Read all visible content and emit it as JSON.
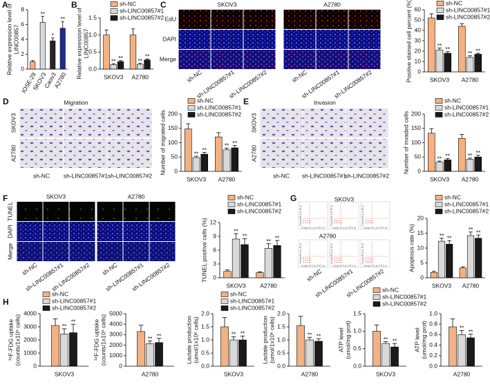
{
  "chart_data": [
    {
      "panel": "A",
      "type": "bar",
      "ylabel": [
        "Relative expression level of",
        "LINC00857"
      ],
      "categories": [
        "IOSE-29",
        "SKOV3",
        "Caov3",
        "A2780"
      ],
      "values": [
        1,
        6.3,
        3.8,
        5.5
      ],
      "errors": [
        0.15,
        0.8,
        0.4,
        0.9
      ],
      "colors": [
        "#f4b183",
        "#d9d9d9",
        "#262626",
        "#1f2d8a"
      ],
      "annotations": [
        null,
        "**",
        "*",
        "**"
      ],
      "ylim": [
        0,
        8
      ],
      "yticks": [
        0,
        2,
        4,
        6,
        8
      ]
    },
    {
      "panel": "B",
      "type": "bar",
      "ylabel": [
        "Relative expression level of",
        "LINC00857"
      ],
      "categories": [
        "SKOV3",
        "A2780"
      ],
      "series": [
        {
          "name": "sh-NC",
          "color": "#f4b183",
          "values": [
            1,
            1
          ],
          "errors": [
            0.15,
            0.18
          ]
        },
        {
          "name": "sh-LINC00857#1",
          "color": "#d9d9d9",
          "values": [
            0.13,
            0.14
          ],
          "errors": [
            0.03,
            0.03
          ],
          "annotations": [
            "**",
            "**"
          ]
        },
        {
          "name": "sh-LINC00857#2",
          "color": "#1a1a1a",
          "values": [
            0.22,
            0.27
          ],
          "errors": [
            0.03,
            0.03
          ],
          "annotations": [
            "**",
            "**"
          ]
        }
      ],
      "ylim": [
        0,
        1.5
      ],
      "yticks": [
        {
          "value": 0,
          "label": "0.0"
        },
        0.5,
        {
          "value": 1,
          "label": "1.0"
        },
        1.5
      ],
      "legend": "top"
    },
    {
      "type": "bar",
      "ylabel": [
        "Positive stained cell percent (%)"
      ],
      "categories": [
        "SKOV3",
        "A2780"
      ],
      "series": [
        {
          "name": "sh-NC",
          "color": "#f4b183",
          "values": [
            52,
            44
          ],
          "errors": [
            4,
            2.5
          ]
        },
        {
          "name": "sh-LINC00857#1",
          "color": "#d9d9d9",
          "values": [
            21,
            14
          ],
          "errors": [
            2,
            1.5
          ],
          "annotations": [
            "**",
            "**"
          ]
        },
        {
          "name": "sh-LINC00857#2",
          "color": "#1a1a1a",
          "values": [
            18,
            17
          ],
          "errors": [
            1.5,
            1
          ],
          "annotations": [
            "**",
            "**"
          ]
        }
      ],
      "ylim": [
        0,
        60
      ],
      "yticks": [
        0,
        10,
        20,
        30,
        40,
        50,
        60
      ],
      "legend": "top"
    },
    {
      "type": "bar",
      "ylabel": [
        "Number of migrated cells"
      ],
      "categories": [
        "SKOV3",
        "A2780"
      ],
      "series": [
        {
          "name": "sh-NC",
          "color": "#f4b183",
          "values": [
            148,
            120
          ],
          "errors": [
            18,
            15
          ]
        },
        {
          "name": "sh-LINC00857#1",
          "color": "#d9d9d9",
          "values": [
            48,
            75
          ],
          "errors": [
            5,
            6
          ],
          "annotations": [
            "**",
            "**"
          ]
        },
        {
          "name": "sh-LINC00857#2",
          "color": "#1a1a1a",
          "values": [
            60,
            82
          ],
          "errors": [
            6,
            8
          ],
          "annotations": [
            "**",
            "**"
          ]
        }
      ],
      "ylim": [
        0,
        200
      ],
      "yticks": [
        0,
        50,
        100,
        150,
        200
      ],
      "legend": "top"
    },
    {
      "type": "bar",
      "ylabel": [
        "Number of invaded cells"
      ],
      "categories": [
        "SKOV3",
        "A2780"
      ],
      "series": [
        {
          "name": "sh-NC",
          "color": "#f4b183",
          "values": [
            133,
            115
          ],
          "errors": [
            16,
            14
          ]
        },
        {
          "name": "sh-LINC00857#1",
          "color": "#d9d9d9",
          "values": [
            32,
            42
          ],
          "errors": [
            4,
            4
          ],
          "annotations": [
            "**",
            "**"
          ]
        },
        {
          "name": "sh-LINC00857#2",
          "color": "#1a1a1a",
          "values": [
            40,
            50
          ],
          "errors": [
            5,
            6
          ],
          "annotations": [
            "**",
            "**"
          ]
        }
      ],
      "ylim": [
        0,
        200
      ],
      "yticks": [
        0,
        50,
        100,
        150,
        200
      ],
      "legend": "top"
    },
    {
      "type": "bar",
      "ylabel": [
        "TUNEL positive cells (%)"
      ],
      "categories": [
        "SKOV3",
        "A2780"
      ],
      "series": [
        {
          "name": "sh-NC",
          "color": "#f4b183",
          "values": [
            1.4,
            1.1
          ],
          "errors": [
            0.3,
            0.2
          ]
        },
        {
          "name": "sh-LINC00857#1",
          "color": "#d9d9d9",
          "values": [
            8.4,
            6.4
          ],
          "errors": [
            1.2,
            1.0
          ],
          "annotations": [
            "**",
            "**"
          ]
        },
        {
          "name": "sh-LINC00857#2",
          "color": "#1a1a1a",
          "values": [
            7.2,
            7.0
          ],
          "errors": [
            1.3,
            1.1
          ],
          "annotations": [
            "**",
            "**"
          ]
        }
      ],
      "ylim": [
        0,
        12
      ],
      "yticks": [
        0,
        3,
        6,
        9,
        12
      ],
      "legend": "top"
    },
    {
      "type": "bar",
      "ylabel": [
        "Apoptosis rate (%)"
      ],
      "categories": [
        "SKOV3",
        "A2780"
      ],
      "series": [
        {
          "name": "sh-NC",
          "color": "#f4b183",
          "values": [
            1.8,
            3.3
          ],
          "errors": [
            0.4,
            0.4
          ]
        },
        {
          "name": "sh-LINC00857#1",
          "color": "#d9d9d9",
          "values": [
            12.3,
            14.2
          ],
          "errors": [
            1.0,
            1.2
          ],
          "annotations": [
            "**",
            "**"
          ]
        },
        {
          "name": "sh-LINC00857#2",
          "color": "#1a1a1a",
          "values": [
            11.3,
            13.3
          ],
          "errors": [
            1.2,
            1.1
          ],
          "annotations": [
            "**",
            "**"
          ]
        }
      ],
      "ylim": [
        0,
        20
      ],
      "yticks": [
        0,
        5,
        10,
        15,
        20
      ],
      "legend": "top"
    },
    {
      "panel": "H",
      "type": "bar",
      "split": true,
      "ylabel": [
        "¹⁸F-FDG uptake",
        "(counts/1x10⁶ cells)"
      ],
      "categories": [
        "SKOV3",
        "A2780"
      ],
      "series": [
        {
          "name": "sh-NC",
          "color": "#f4b183",
          "values": [
            3100,
            3300
          ],
          "errors": [
            500,
            600
          ]
        },
        {
          "name": "sh-LINC00857#1",
          "color": "#d9d9d9",
          "values": [
            2450,
            2150
          ],
          "errors": [
            400,
            250
          ],
          "annotations": [
            "**",
            "**"
          ]
        },
        {
          "name": "sh-LINC00857#2",
          "color": "#1a1a1a",
          "values": [
            2550,
            2250
          ],
          "errors": [
            650,
            400
          ],
          "annotations": [
            "**",
            "**"
          ]
        }
      ],
      "ylim": [
        [
          0,
          4000
        ],
        [
          0,
          5000
        ]
      ],
      "yticks": [
        [
          0,
          1000,
          2000,
          3000,
          4000
        ],
        [
          0,
          1000,
          2000,
          3000,
          4000,
          5000
        ]
      ],
      "legend": "top"
    },
    {
      "type": "bar",
      "split": true,
      "ylabel": [
        "Lactate production",
        "(umol/1x10⁶ cells)"
      ],
      "categories": [
        "SKOV3",
        "A2780"
      ],
      "series": [
        {
          "name": "sh-NC",
          "color": "#f4b183",
          "values": [
            1.5,
            1.55
          ],
          "errors": [
            0.35,
            0.35
          ]
        },
        {
          "name": "sh-LINC00857#1",
          "color": "#d9d9d9",
          "values": [
            1.0,
            1.0
          ],
          "errors": [
            0.12,
            0.1
          ],
          "annotations": [
            "**",
            "**"
          ]
        },
        {
          "name": "sh-LINC00857#2",
          "color": "#1a1a1a",
          "values": [
            1.0,
            0.95
          ],
          "errors": [
            0.15,
            0.1
          ],
          "annotations": [
            "**",
            "**"
          ]
        }
      ],
      "ylim": [
        [
          0,
          2
        ],
        [
          0,
          2
        ]
      ],
      "yticks": [
        [
          {
            "value": 0,
            "label": "0.0"
          },
          0.5,
          {
            "value": 1,
            "label": "1.0"
          },
          1.5,
          {
            "value": 2,
            "label": "2.0"
          }
        ],
        [
          {
            "value": 0,
            "label": "0.0"
          },
          0.5,
          {
            "value": 1,
            "label": "1.0"
          },
          1.5,
          {
            "value": 2,
            "label": "2.0"
          }
        ]
      ],
      "legend": "top"
    },
    {
      "type": "bar",
      "split": true,
      "ylabel": [
        "ATP level",
        "(umol/mg prot)"
      ],
      "categories": [
        "SKOV3",
        "A2780"
      ],
      "series": [
        {
          "name": "sh-NC",
          "color": "#f4b183",
          "values": [
            1.0,
            0.75
          ],
          "errors": [
            0.18,
            0.15
          ]
        },
        {
          "name": "sh-LINC00857#1",
          "color": "#d9d9d9",
          "values": [
            0.65,
            0.6
          ],
          "errors": [
            0.05,
            0.08
          ],
          "annotations": [
            "**",
            "**"
          ]
        },
        {
          "name": "sh-LINC00857#2",
          "color": "#1a1a1a",
          "values": [
            0.55,
            0.54
          ],
          "errors": [
            0.1,
            0.07
          ],
          "annotations": [
            "**",
            "**"
          ]
        }
      ],
      "ylim": [
        [
          0,
          1.5
        ],
        [
          0,
          1
        ]
      ],
      "yticks": [
        [
          {
            "value": 0,
            "label": "0.0"
          },
          0.5,
          {
            "value": 1,
            "label": "1.0"
          },
          1.5
        ],
        [
          {
            "value": 0,
            "label": "0.0"
          },
          0.2,
          0.4,
          0.6,
          0.8,
          {
            "value": 1,
            "label": "1.0"
          }
        ]
      ],
      "legend": "top"
    }
  ],
  "images": {
    "C": {
      "panel": "C",
      "col_groups": [
        "SKOV3",
        "A2780"
      ],
      "rows": [
        "EdU",
        "DAPI",
        "Merge"
      ],
      "columns": [
        "sh-NC",
        "sh-LINC00857#1",
        "sh-LINC00857#2"
      ]
    },
    "D": {
      "panel": "D",
      "title": "Migration",
      "rows": [
        "SKOV3",
        "A2780"
      ],
      "columns": [
        "sh-NC",
        "sh-LINC00857#1",
        "sh-LINC00857#2"
      ]
    },
    "E": {
      "panel": "E",
      "title": "Invasion",
      "rows": [
        "SKOV3",
        "A2780"
      ],
      "columns": [
        "sh-NC",
        "sh-LINC00857#1",
        "sh-LINC00857#2"
      ]
    },
    "F": {
      "panel": "F",
      "col_groups": [
        "SKOV3",
        "A2780"
      ],
      "rows": [
        "TUNEL",
        "DAPI",
        "Merge"
      ],
      "columns": [
        "sh-NC",
        "sh-LINC00857#1",
        "sh-LINC00857#2"
      ]
    },
    "G": {
      "panel": "G",
      "row_groups": [
        "SKOV3",
        "A2780"
      ],
      "y_axis": "Comp-PL3-A::PI-A",
      "x_axis": "Comp-FL1-A::FITC-A",
      "columns": [
        "sh-NC",
        "sh-LINC00857#1",
        "sh-LINC00857#2"
      ]
    }
  }
}
